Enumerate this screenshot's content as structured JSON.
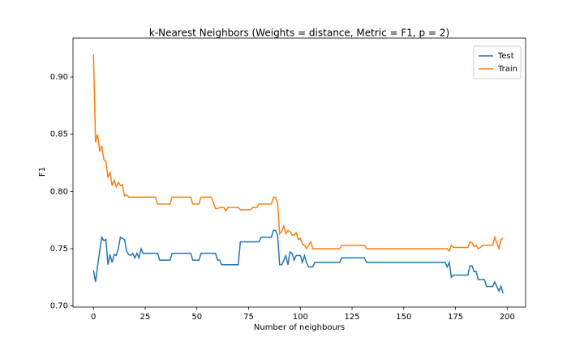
{
  "chart_data": {
    "type": "line",
    "title": "k-Nearest Neighbors (Weights = distance, Metric = F1, p = 2)",
    "x_label": "Number of neighbours",
    "y_label": "F1",
    "x": [
      0,
      1,
      2,
      3,
      4,
      5,
      6,
      7,
      8,
      9,
      10,
      11,
      12,
      13,
      14,
      15,
      16,
      17,
      18,
      19,
      20,
      21,
      22,
      23,
      24,
      25,
      26,
      27,
      28,
      29,
      30,
      31,
      32,
      33,
      34,
      35,
      36,
      37,
      38,
      39,
      40,
      41,
      42,
      43,
      44,
      45,
      46,
      47,
      48,
      49,
      50,
      51,
      52,
      53,
      54,
      55,
      56,
      57,
      58,
      59,
      60,
      61,
      62,
      63,
      64,
      65,
      66,
      67,
      68,
      69,
      70,
      71,
      72,
      73,
      74,
      75,
      76,
      77,
      78,
      79,
      80,
      81,
      82,
      83,
      84,
      85,
      86,
      87,
      88,
      89,
      90,
      91,
      92,
      93,
      94,
      95,
      96,
      97,
      98,
      99,
      100,
      101,
      102,
      103,
      104,
      105,
      106,
      107,
      108,
      109,
      110,
      111,
      112,
      113,
      114,
      115,
      116,
      117,
      118,
      119,
      120,
      121,
      122,
      123,
      124,
      125,
      126,
      127,
      128,
      129,
      130,
      131,
      132,
      133,
      134,
      135,
      136,
      137,
      138,
      139,
      140,
      141,
      142,
      143,
      144,
      145,
      146,
      147,
      148,
      149,
      150,
      151,
      152,
      153,
      154,
      155,
      156,
      157,
      158,
      159,
      160,
      161,
      162,
      163,
      164,
      165,
      166,
      167,
      168,
      169,
      170,
      171,
      172,
      173,
      174,
      175,
      176,
      177,
      178,
      179,
      180,
      181,
      182,
      183,
      184,
      185,
      186,
      187,
      188,
      189,
      190,
      191,
      192,
      193,
      194,
      195,
      196,
      197,
      198
    ],
    "series": [
      {
        "name": "Test",
        "color": "#1f77b4",
        "values": [
          0.731,
          0.721,
          0.735,
          0.748,
          0.76,
          0.757,
          0.758,
          0.736,
          0.745,
          0.738,
          0.745,
          0.744,
          0.75,
          0.76,
          0.759,
          0.758,
          0.748,
          0.745,
          0.744,
          0.746,
          0.742,
          0.746,
          0.742,
          0.75,
          0.746,
          0.746,
          0.746,
          0.746,
          0.746,
          0.746,
          0.746,
          0.746,
          0.74,
          0.74,
          0.74,
          0.74,
          0.74,
          0.74,
          0.746,
          0.746,
          0.746,
          0.746,
          0.746,
          0.746,
          0.746,
          0.746,
          0.746,
          0.746,
          0.74,
          0.74,
          0.74,
          0.74,
          0.746,
          0.746,
          0.746,
          0.746,
          0.746,
          0.746,
          0.746,
          0.746,
          0.74,
          0.74,
          0.736,
          0.736,
          0.736,
          0.736,
          0.736,
          0.736,
          0.736,
          0.736,
          0.736,
          0.756,
          0.756,
          0.756,
          0.756,
          0.756,
          0.756,
          0.756,
          0.756,
          0.756,
          0.756,
          0.76,
          0.76,
          0.76,
          0.76,
          0.76,
          0.76,
          0.766,
          0.766,
          0.762,
          0.736,
          0.736,
          0.74,
          0.744,
          0.736,
          0.747,
          0.746,
          0.74,
          0.744,
          0.744,
          0.744,
          0.738,
          0.744,
          0.738,
          0.734,
          0.734,
          0.734,
          0.738,
          0.738,
          0.738,
          0.738,
          0.738,
          0.738,
          0.738,
          0.738,
          0.738,
          0.738,
          0.738,
          0.738,
          0.738,
          0.742,
          0.742,
          0.742,
          0.742,
          0.742,
          0.742,
          0.742,
          0.742,
          0.742,
          0.742,
          0.742,
          0.742,
          0.738,
          0.738,
          0.738,
          0.738,
          0.738,
          0.738,
          0.738,
          0.738,
          0.738,
          0.738,
          0.738,
          0.738,
          0.738,
          0.738,
          0.738,
          0.738,
          0.738,
          0.738,
          0.738,
          0.738,
          0.738,
          0.738,
          0.738,
          0.738,
          0.738,
          0.738,
          0.738,
          0.738,
          0.738,
          0.738,
          0.738,
          0.738,
          0.738,
          0.738,
          0.738,
          0.738,
          0.738,
          0.738,
          0.738,
          0.734,
          0.738,
          0.725,
          0.727,
          0.727,
          0.727,
          0.727,
          0.727,
          0.727,
          0.727,
          0.727,
          0.735,
          0.735,
          0.73,
          0.73,
          0.723,
          0.723,
          0.723,
          0.723,
          0.717,
          0.717,
          0.717,
          0.717,
          0.721,
          0.717,
          0.713,
          0.717,
          0.711
        ]
      },
      {
        "name": "Train",
        "color": "#ff7f0e",
        "values": [
          0.92,
          0.843,
          0.85,
          0.835,
          0.84,
          0.828,
          0.826,
          0.812,
          0.817,
          0.805,
          0.81,
          0.804,
          0.808,
          0.805,
          0.806,
          0.796,
          0.797,
          0.795,
          0.795,
          0.795,
          0.795,
          0.795,
          0.795,
          0.795,
          0.795,
          0.795,
          0.795,
          0.795,
          0.795,
          0.795,
          0.795,
          0.789,
          0.789,
          0.789,
          0.789,
          0.789,
          0.789,
          0.789,
          0.795,
          0.795,
          0.795,
          0.795,
          0.795,
          0.795,
          0.795,
          0.795,
          0.795,
          0.795,
          0.789,
          0.789,
          0.789,
          0.789,
          0.795,
          0.795,
          0.795,
          0.795,
          0.795,
          0.795,
          0.79,
          0.785,
          0.785,
          0.786,
          0.786,
          0.786,
          0.783,
          0.786,
          0.786,
          0.786,
          0.786,
          0.786,
          0.786,
          0.784,
          0.784,
          0.784,
          0.784,
          0.784,
          0.784,
          0.786,
          0.786,
          0.786,
          0.789,
          0.789,
          0.789,
          0.789,
          0.789,
          0.789,
          0.789,
          0.795,
          0.795,
          0.79,
          0.763,
          0.765,
          0.77,
          0.763,
          0.766,
          0.765,
          0.762,
          0.762,
          0.764,
          0.758,
          0.759,
          0.754,
          0.753,
          0.75,
          0.753,
          0.756,
          0.75,
          0.75,
          0.75,
          0.75,
          0.75,
          0.75,
          0.75,
          0.75,
          0.75,
          0.75,
          0.75,
          0.75,
          0.75,
          0.75,
          0.753,
          0.753,
          0.753,
          0.753,
          0.753,
          0.753,
          0.753,
          0.753,
          0.753,
          0.753,
          0.753,
          0.753,
          0.75,
          0.75,
          0.75,
          0.75,
          0.75,
          0.75,
          0.75,
          0.75,
          0.75,
          0.75,
          0.75,
          0.75,
          0.75,
          0.75,
          0.75,
          0.75,
          0.75,
          0.75,
          0.75,
          0.75,
          0.75,
          0.75,
          0.75,
          0.75,
          0.75,
          0.75,
          0.75,
          0.75,
          0.75,
          0.75,
          0.75,
          0.75,
          0.75,
          0.75,
          0.75,
          0.75,
          0.75,
          0.75,
          0.75,
          0.75,
          0.748,
          0.753,
          0.751,
          0.751,
          0.751,
          0.751,
          0.751,
          0.751,
          0.751,
          0.751,
          0.756,
          0.755,
          0.752,
          0.753,
          0.75,
          0.751,
          0.753,
          0.753,
          0.753,
          0.753,
          0.753,
          0.753,
          0.76,
          0.755,
          0.75,
          0.758,
          0.759
        ]
      }
    ],
    "xlim": [
      -9.9,
      208.9
    ],
    "ylim": [
      0.699,
      0.934
    ],
    "xticks": [
      0,
      25,
      50,
      75,
      100,
      125,
      150,
      175,
      200
    ],
    "yticks": [
      {
        "value": 0.7,
        "label": "0.70"
      },
      0.75,
      {
        "value": 0.8,
        "label": "0.80"
      },
      0.85,
      {
        "value": 0.9,
        "label": "0.90"
      }
    ],
    "legend": "upper right"
  }
}
